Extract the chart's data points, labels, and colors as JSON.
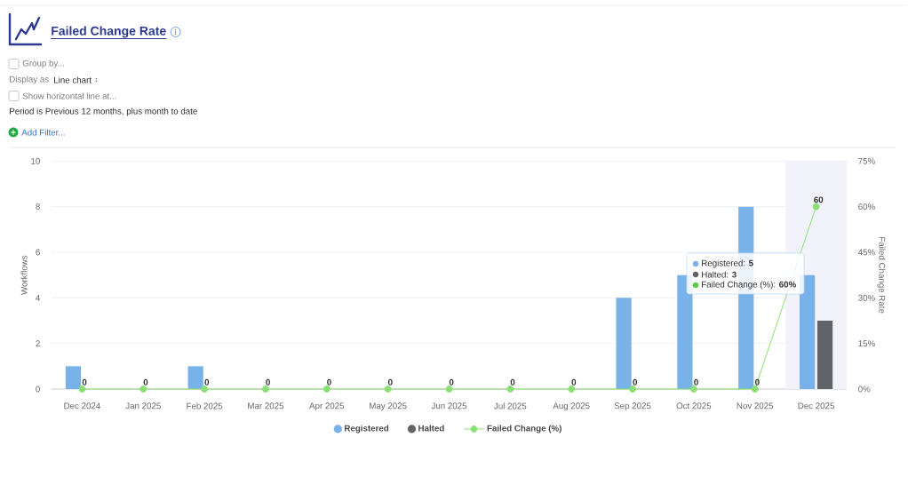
{
  "chart_data": {
    "type": "bar",
    "title": "Failed Change Rate",
    "ylabel": "Workflows",
    "y2label": "Failed Change Rate",
    "categories": [
      "Dec 2024",
      "Jan 2025",
      "Feb 2025",
      "Mar 2025",
      "Apr 2025",
      "May 2025",
      "Jun 2025",
      "Jul 2025",
      "Aug 2025",
      "Sep 2025",
      "Oct 2025",
      "Nov 2025",
      "Dec 2025"
    ],
    "series": [
      {
        "name": "Registered",
        "color": "#78b2e8",
        "values": [
          1,
          0,
          1,
          0,
          0,
          0,
          0,
          0,
          0,
          4,
          5,
          8,
          5
        ]
      },
      {
        "name": "Halted",
        "color": "#626367",
        "values": [
          0,
          0,
          0,
          0,
          0,
          0,
          0,
          0,
          0,
          0,
          0,
          0,
          3
        ]
      },
      {
        "name": "Failed Change (%)",
        "type": "line",
        "axis": "y2",
        "color": "#8adf72",
        "marker": "circle",
        "line_style": "solid",
        "values": [
          0,
          0,
          0,
          0,
          0,
          0,
          0,
          0,
          0,
          0,
          0,
          0,
          60
        ],
        "value_labels": [
          "0",
          "0",
          "0",
          "0",
          "0",
          "0",
          "0",
          "0",
          "0",
          "0",
          "0",
          "0",
          "60"
        ]
      }
    ],
    "ylim": [
      0,
      10
    ],
    "yticks": [
      0,
      2,
      4,
      6,
      8,
      10
    ],
    "y2lim": [
      0,
      75
    ],
    "y2ticks": [
      {
        "value": 0,
        "label": "0%"
      },
      {
        "value": 15,
        "label": "15%"
      },
      {
        "value": 30,
        "label": "30%"
      },
      {
        "value": 45,
        "label": "45%"
      },
      {
        "value": 60,
        "label": "60%"
      },
      {
        "value": 75,
        "label": "75%"
      }
    ],
    "grid": "y",
    "legend": "bottom",
    "bands": [
      {
        "axis": "x",
        "from": "Dec 2025",
        "to": "Dec 2025",
        "color": "#f2f3fa"
      }
    ],
    "annotations": [
      "Group by...",
      "Display as",
      "Line chart",
      "Show horizontal line at...",
      "Period is Previous 12 months, plus month to date",
      "Add Filter...",
      "Registered: **5**",
      "Halted: **3**",
      "Failed Change (%): **60%**"
    ]
  }
}
